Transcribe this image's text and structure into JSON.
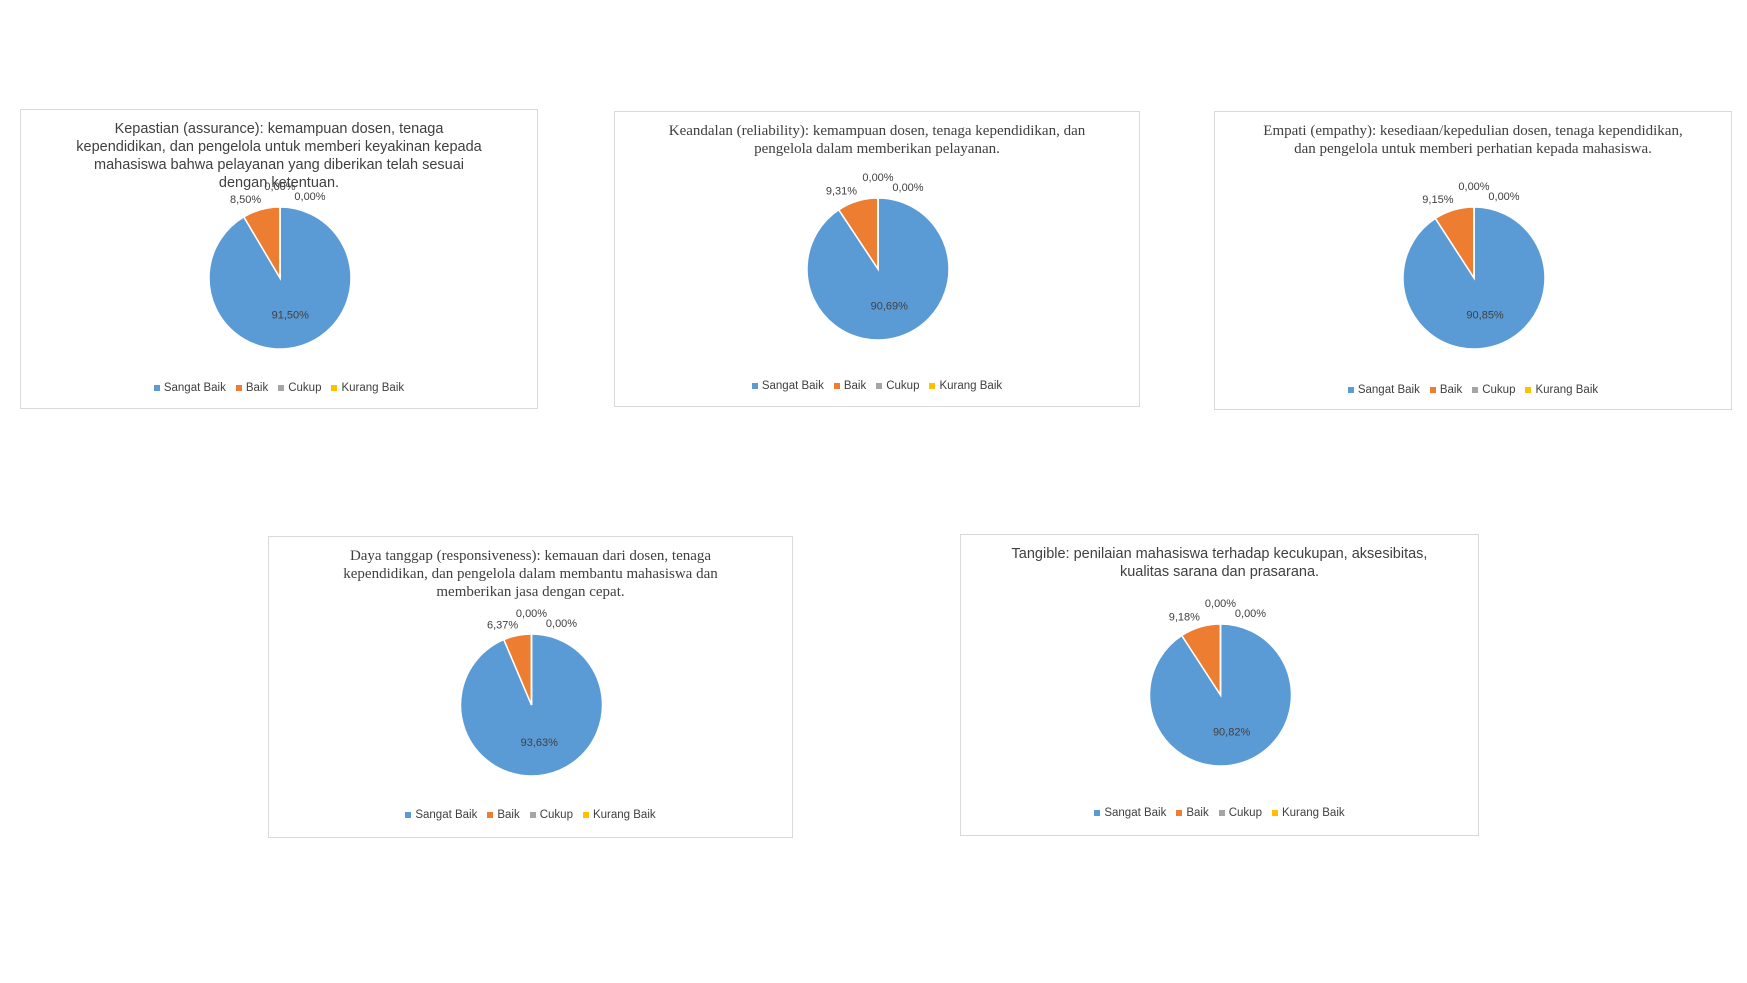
{
  "chart_data": [
    {
      "type": "pie",
      "title": "Kepastian (assurance): kemampuan dosen, tenaga kependidikan, dan pengelola untuk memberi keyakinan kepada mahasiswa bahwa pelayanan yang diberikan telah sesuai dengan ketentuan.",
      "categories": [
        "Sangat Baik",
        "Baik",
        "Cukup",
        "Kurang Baik"
      ],
      "values": [
        91.5,
        8.5,
        0,
        0
      ],
      "value_labels": [
        "91,50%",
        "8,50%",
        "0,00%",
        "0,00%"
      ],
      "colors": [
        "#5b9bd5",
        "#ed7d31",
        "#a5a5a5",
        "#ffc000"
      ],
      "legend": "bottom"
    },
    {
      "type": "pie",
      "title": "Keandalan (reliability): kemampuan dosen, tenaga kependidikan, dan pengelola dalam memberikan pelayanan.",
      "categories": [
        "Sangat Baik",
        "Baik",
        "Cukup",
        "Kurang Baik"
      ],
      "values": [
        90.69,
        9.31,
        0,
        0
      ],
      "value_labels": [
        "90,69%",
        "9,31%",
        "0,00%",
        "0,00%"
      ],
      "colors": [
        "#5b9bd5",
        "#ed7d31",
        "#a5a5a5",
        "#ffc000"
      ],
      "legend": "bottom"
    },
    {
      "type": "pie",
      "title": "Empati (empathy): kesediaan/kepedulian dosen, tenaga kependidikan, dan pengelola untuk memberi perhatian kepada mahasiswa.",
      "categories": [
        "Sangat Baik",
        "Baik",
        "Cukup",
        "Kurang Baik"
      ],
      "values": [
        90.85,
        9.15,
        0,
        0
      ],
      "value_labels": [
        "90,85%",
        "9,15%",
        "0,00%",
        "0,00%"
      ],
      "colors": [
        "#5b9bd5",
        "#ed7d31",
        "#a5a5a5",
        "#ffc000"
      ],
      "legend": "bottom"
    },
    {
      "type": "pie",
      "title": "Daya tanggap (responsiveness): kemauan dari dosen, tenaga kependidikan, dan pengelola dalam membantu mahasiswa dan memberikan jasa dengan cepat.",
      "categories": [
        "Sangat Baik",
        "Baik",
        "Cukup",
        "Kurang Baik"
      ],
      "values": [
        93.63,
        6.37,
        0,
        0
      ],
      "value_labels": [
        "93,63%",
        "6,37%",
        "0,00%",
        "0,00%"
      ],
      "colors": [
        "#5b9bd5",
        "#ed7d31",
        "#a5a5a5",
        "#ffc000"
      ],
      "legend": "bottom"
    },
    {
      "type": "pie",
      "title": "Tangible: penilaian mahasiswa terhadap kecukupan, aksesibitas, kualitas sarana dan prasarana.",
      "categories": [
        "Sangat Baik",
        "Baik",
        "Cukup",
        "Kurang Baik"
      ],
      "values": [
        90.82,
        9.18,
        0,
        0
      ],
      "value_labels": [
        "90,82%",
        "9,18%",
        "0,00%",
        "0,00%"
      ],
      "colors": [
        "#5b9bd5",
        "#ed7d31",
        "#a5a5a5",
        "#ffc000"
      ],
      "legend": "bottom"
    }
  ]
}
